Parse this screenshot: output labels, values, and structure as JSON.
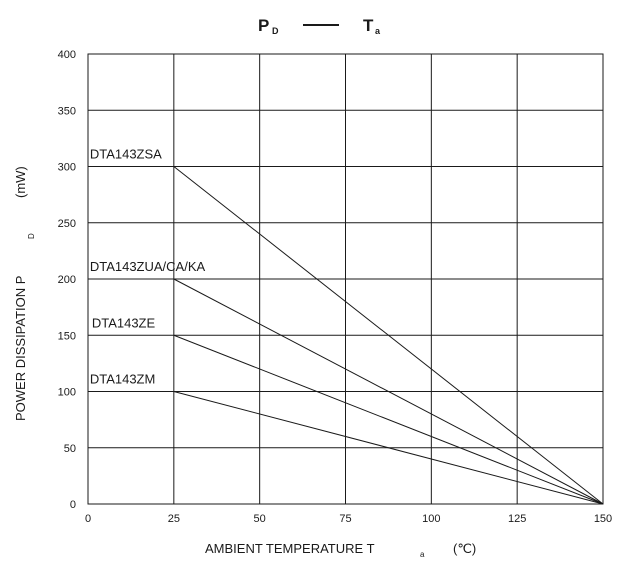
{
  "chart_data": {
    "type": "line",
    "title": {
      "main_left": "P",
      "main_left_sub": "D",
      "separator": "——",
      "main_right": "T",
      "main_right_sub": "a"
    },
    "xlabel": {
      "text": "AMBIENT TEMPERATURE   T",
      "sub": "a",
      "unit": "(℃)"
    },
    "ylabel": {
      "text": "POWER DISSIPATION   P",
      "sub": "D",
      "unit": "(mW)"
    },
    "xlim": [
      0,
      150
    ],
    "ylim": [
      0,
      400
    ],
    "xticks": [
      0,
      25,
      50,
      75,
      100,
      125,
      150
    ],
    "yticks": [
      0,
      50,
      100,
      150,
      200,
      250,
      300,
      350,
      400
    ],
    "grid": true,
    "series": [
      {
        "name": "DTA143ZSA",
        "x": [
          25,
          150
        ],
        "y": [
          300,
          0
        ]
      },
      {
        "name": "DTA143ZUA/CA/KA",
        "x": [
          25,
          150
        ],
        "y": [
          200,
          0
        ]
      },
      {
        "name": "DTA143ZE",
        "x": [
          25,
          150
        ],
        "y": [
          150,
          0
        ]
      },
      {
        "name": "DTA143ZM",
        "x": [
          25,
          150
        ],
        "y": [
          100,
          0
        ]
      }
    ]
  }
}
